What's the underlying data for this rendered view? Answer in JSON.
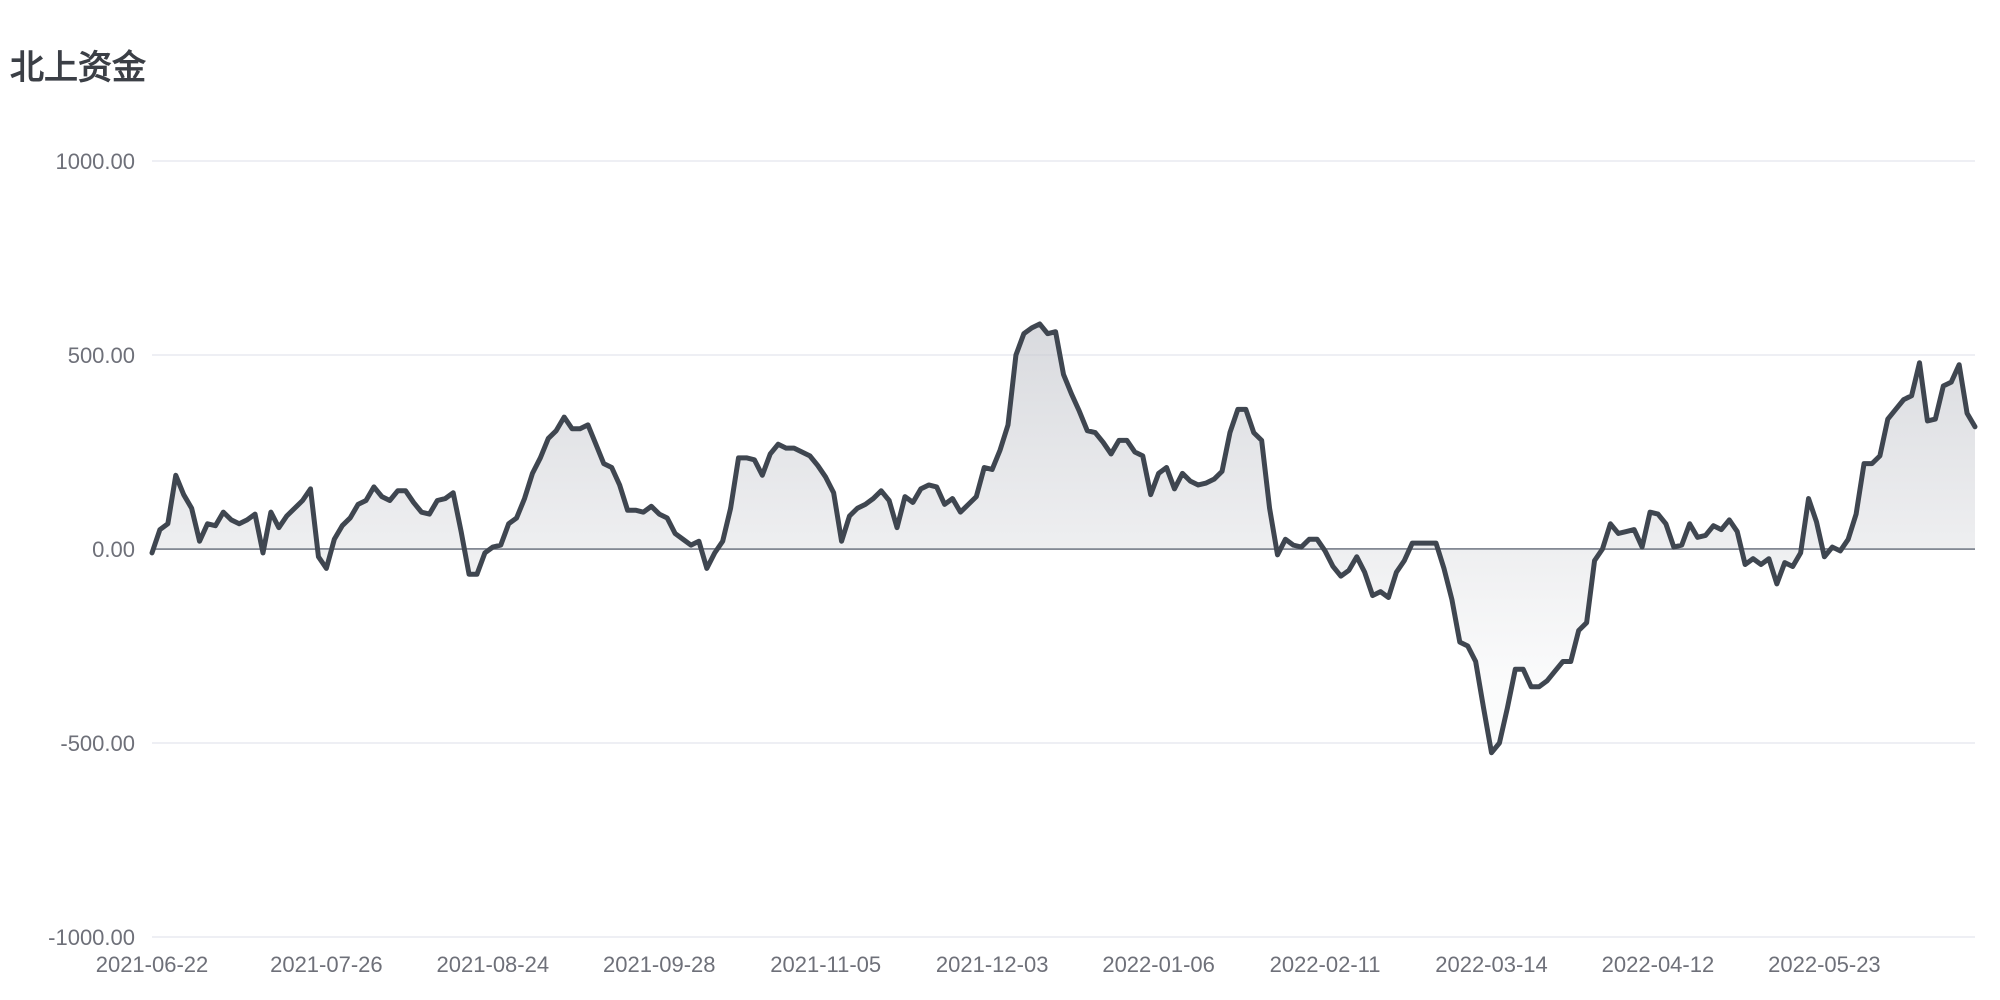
{
  "chart_data": {
    "type": "area",
    "title": "北上资金",
    "xlabel": "",
    "ylabel": "",
    "ylim": [
      -1000,
      1000
    ],
    "yticks": [
      {
        "value": 1000,
        "label": "1000.00"
      },
      {
        "value": 500,
        "label": "500.00"
      },
      {
        "value": 0,
        "label": "0.00"
      },
      {
        "value": -500,
        "label": "-500.00"
      },
      {
        "value": -1000,
        "label": "-1000.00"
      }
    ],
    "xticks": [
      {
        "label": "2021-06-22",
        "index": 0
      },
      {
        "label": "2021-07-26",
        "index": 22
      },
      {
        "label": "2021-08-24",
        "index": 43
      },
      {
        "label": "2021-09-28",
        "index": 64
      },
      {
        "label": "2021-11-05",
        "index": 85
      },
      {
        "label": "2021-12-03",
        "index": 106
      },
      {
        "label": "2022-01-06",
        "index": 127
      },
      {
        "label": "2022-02-11",
        "index": 148
      },
      {
        "label": "2022-03-14",
        "index": 169
      },
      {
        "label": "2022-04-12",
        "index": 190
      },
      {
        "label": "2022-05-23",
        "index": 211
      }
    ],
    "grid": true,
    "legend": "none",
    "line_color": "#3f4650",
    "area_color": "#c8cad0",
    "grid_color": "#dcdfe8",
    "zero_line_color": "#5b6270",
    "values": [
      -10,
      50,
      65,
      190,
      140,
      105,
      20,
      65,
      60,
      95,
      75,
      65,
      75,
      90,
      -10,
      95,
      55,
      85,
      105,
      125,
      155,
      -20,
      -50,
      25,
      60,
      80,
      115,
      125,
      160,
      135,
      125,
      150,
      150,
      120,
      95,
      90,
      125,
      130,
      145,
      45,
      -65,
      -65,
      -10,
      5,
      10,
      65,
      80,
      130,
      195,
      235,
      285,
      305,
      340,
      310,
      310,
      320,
      270,
      220,
      210,
      165,
      100,
      100,
      95,
      110,
      90,
      80,
      40,
      25,
      10,
      20,
      -50,
      -10,
      20,
      105,
      235,
      235,
      230,
      190,
      245,
      270,
      260,
      260,
      250,
      240,
      215,
      185,
      145,
      20,
      85,
      105,
      115,
      130,
      150,
      125,
      55,
      135,
      120,
      155,
      165,
      160,
      115,
      130,
      95,
      115,
      135,
      210,
      205,
      255,
      320,
      500,
      555,
      570,
      580,
      555,
      560,
      450,
      400,
      355,
      305,
      300,
      275,
      245,
      280,
      280,
      250,
      240,
      140,
      195,
      210,
      155,
      195,
      175,
      165,
      170,
      180,
      200,
      300,
      360,
      360,
      300,
      280,
      105,
      -15,
      25,
      10,
      5,
      25,
      25,
      -5,
      -45,
      -70,
      -55,
      -20,
      -60,
      -120,
      -110,
      -125,
      -60,
      -30,
      15,
      15,
      15,
      15,
      -50,
      -130,
      -240,
      -250,
      -290,
      -410,
      -525,
      -500,
      -410,
      -310,
      -310,
      -355,
      -355,
      -340,
      -315,
      -290,
      -290,
      -210,
      -190,
      -30,
      0,
      65,
      40,
      45,
      50,
      5,
      95,
      90,
      65,
      5,
      10,
      65,
      30,
      35,
      60,
      50,
      75,
      45,
      -40,
      -25,
      -40,
      -25,
      -90,
      -35,
      -45,
      -10,
      130,
      70,
      -20,
      5,
      -5,
      25,
      90,
      220,
      220,
      240,
      335,
      360,
      385,
      395,
      480,
      330,
      335,
      420,
      430,
      475,
      350,
      315
    ]
  }
}
